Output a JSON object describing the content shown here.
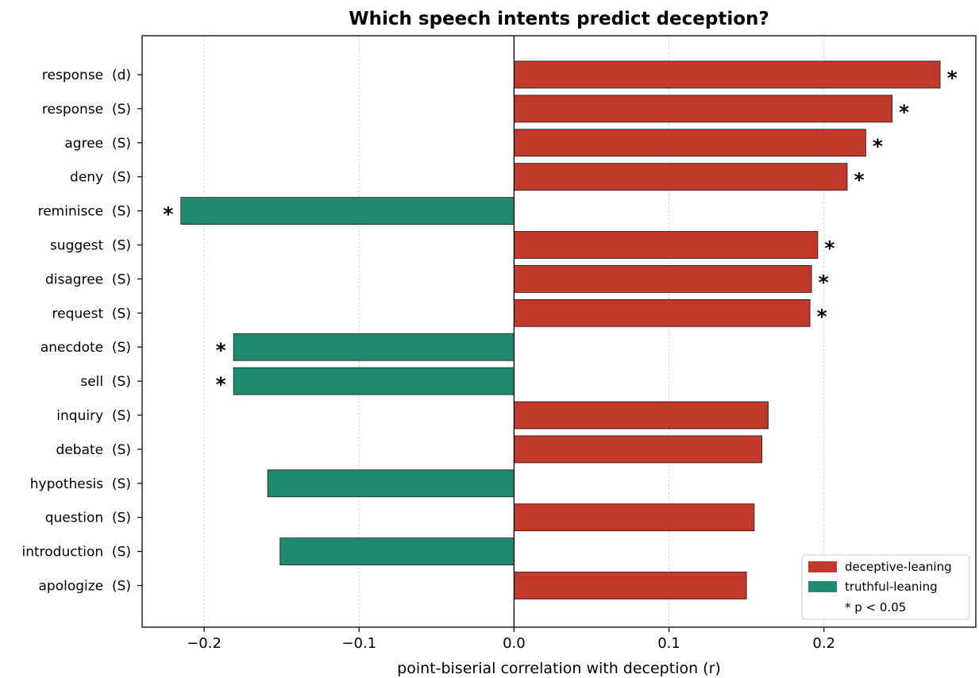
{
  "chart_data": {
    "type": "bar",
    "orientation": "horizontal",
    "title": "Which speech intents predict deception?",
    "xlabel": "point-biserial correlation with deception  (r)",
    "ylabel": "",
    "xlim": [
      -0.24,
      0.298
    ],
    "xticks": [
      -0.2,
      -0.1,
      0.0,
      0.1,
      0.2
    ],
    "xtick_labels": [
      "−0.2",
      "−0.1",
      "0.0",
      "0.1",
      "0.2"
    ],
    "grid": "vertical dotted",
    "legend_position": "lower-right",
    "categories": [
      "response  (d)",
      "response  (S)",
      "agree  (S)",
      "deny  (S)",
      "reminisce  (S)",
      "suggest  (S)",
      "disagree  (S)",
      "request  (S)",
      "anecdote  (S)",
      "sell  (S)",
      "inquiry  (S)",
      "debate  (S)",
      "hypothesis  (S)",
      "question  (S)",
      "introduction  (S)",
      "apologize  (S)"
    ],
    "values": [
      0.275,
      0.244,
      0.227,
      0.215,
      -0.215,
      0.196,
      0.192,
      0.191,
      -0.181,
      -0.181,
      0.164,
      0.16,
      -0.159,
      0.155,
      -0.151,
      0.15
    ],
    "significant": [
      true,
      true,
      true,
      true,
      true,
      true,
      true,
      true,
      true,
      true,
      false,
      false,
      false,
      false,
      false,
      false
    ],
    "significance_marker": "*",
    "colors": {
      "deceptive": "#c0392b",
      "truthful": "#1e8a70",
      "bar_edge": "#1a1a1a"
    },
    "legend": [
      {
        "label": "deceptive-leaning",
        "color": "#c0392b"
      },
      {
        "label": "truthful-leaning",
        "color": "#1e8a70"
      },
      {
        "label": "* p < 0.05",
        "color": null
      }
    ]
  }
}
